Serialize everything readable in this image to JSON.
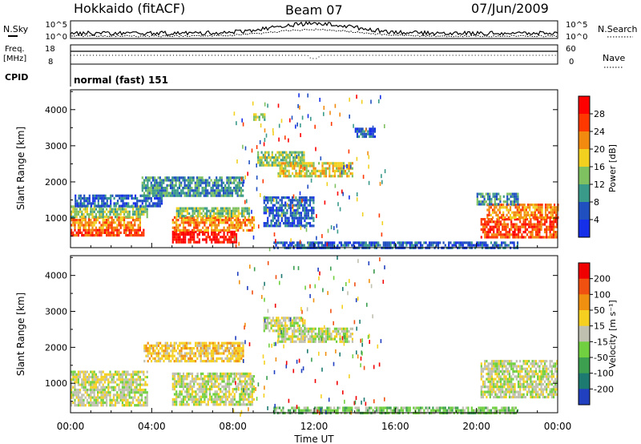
{
  "header": {
    "station": "Hokkaido (fitACF)",
    "beam": "Beam 07",
    "date": "07/Jun/2009"
  },
  "top_panels": {
    "nsky_label": "N.Sky",
    "nsearch_label": "N.Search",
    "noise_ticks_left": [
      "10^5",
      "10^0"
    ],
    "noise_ticks_right": [
      "10^5",
      "10^0"
    ],
    "freq_label_1": "Freq.",
    "freq_label_2": "[MHz]",
    "freq_ticks": [
      "18",
      "8"
    ],
    "nave_label": "Nave",
    "nave_ticks": [
      "60",
      "0"
    ],
    "cpid_label": "CPID",
    "cpid_text": "normal (fast) 151"
  },
  "chart_data": [
    {
      "type": "heatmap",
      "name": "power",
      "ylabel": "Slant Range [km]",
      "ylim": [
        180,
        4550
      ],
      "yticks": [
        1000,
        2000,
        3000,
        4000
      ],
      "ytick_labels": [
        "1000",
        "2000",
        "3000",
        "4000"
      ],
      "xlim": [
        0,
        24
      ],
      "colorbar": {
        "label": "Power [dB]",
        "tick_labels": [
          "4",
          "8",
          "12",
          "16",
          "20",
          "24",
          "28"
        ],
        "colors": [
          "#1530e8",
          "#2050c0",
          "#3a9a8a",
          "#7fc060",
          "#f2d020",
          "#f28a10",
          "#ff3800",
          "#ff0000"
        ]
      },
      "regions": [
        {
          "t0": 0.0,
          "t1": 3.6,
          "r0": 500,
          "r1": 700,
          "level": 6
        },
        {
          "t0": 0.0,
          "t1": 3.4,
          "r0": 750,
          "r1": 1050,
          "level": 5
        },
        {
          "t0": 0.0,
          "t1": 3.8,
          "r0": 1050,
          "r1": 1350,
          "level": 3
        },
        {
          "t0": 0.2,
          "t1": 4.5,
          "r0": 1350,
          "r1": 1650,
          "level": 1
        },
        {
          "t0": 5.0,
          "t1": 8.2,
          "r0": 350,
          "r1": 650,
          "level": 7
        },
        {
          "t0": 5.0,
          "t1": 9.0,
          "r0": 650,
          "r1": 1050,
          "level": 5
        },
        {
          "t0": 5.2,
          "t1": 8.8,
          "r0": 1050,
          "r1": 1300,
          "level": 3
        },
        {
          "t0": 3.5,
          "t1": 8.5,
          "r0": 1600,
          "r1": 2150,
          "level": 2
        },
        {
          "t0": 9.2,
          "t1": 11.5,
          "r0": 2450,
          "r1": 2850,
          "level": 3
        },
        {
          "t0": 10.2,
          "t1": 13.9,
          "r0": 2150,
          "r1": 2550,
          "level": 4
        },
        {
          "t0": 9.5,
          "t1": 12.0,
          "r0": 800,
          "r1": 1600,
          "level": 1
        },
        {
          "t0": 14.0,
          "t1": 15.0,
          "r0": 3250,
          "r1": 3500,
          "level": 1
        },
        {
          "t0": 9.0,
          "t1": 9.6,
          "r0": 3700,
          "r1": 3900,
          "level": 3
        },
        {
          "t0": 20.2,
          "t1": 24.0,
          "r0": 500,
          "r1": 1000,
          "level": 6
        },
        {
          "t0": 20.5,
          "t1": 24.0,
          "r0": 1000,
          "r1": 1400,
          "level": 5
        },
        {
          "t0": 20.0,
          "t1": 22.0,
          "r0": 1400,
          "r1": 1700,
          "level": 2
        },
        {
          "t0": 10.0,
          "t1": 22.0,
          "r0": 200,
          "r1": 350,
          "level": 1
        }
      ]
    },
    {
      "type": "heatmap",
      "name": "velocity",
      "ylabel": "Slant Range [km]",
      "xlabel": "Time UT",
      "ylim": [
        180,
        4550
      ],
      "yticks": [
        1000,
        2000,
        3000,
        4000
      ],
      "ytick_labels": [
        "1000",
        "2000",
        "3000",
        "4000"
      ],
      "xlim": [
        0,
        24
      ],
      "xticks": [
        0,
        4,
        8,
        12,
        16,
        20,
        24
      ],
      "xtick_labels": [
        "00:00",
        "04:00",
        "08:00",
        "12:00",
        "16:00",
        "20:00",
        "00:00"
      ],
      "colorbar": {
        "label": "Velocity [m s⁻¹]",
        "tick_labels": [
          "200",
          "100",
          "50",
          "15",
          "-15",
          "-50",
          "-100",
          "-200"
        ],
        "colors": [
          "#2040c0",
          "#1c7a70",
          "#3ca050",
          "#70d040",
          "#c0c0b0",
          "#f5d020",
          "#f09010",
          "#f05010",
          "#f00000"
        ]
      },
      "regions": [
        {
          "t0": 0.0,
          "t1": 3.8,
          "r0": 400,
          "r1": 1350,
          "level": 4
        },
        {
          "t0": 5.0,
          "t1": 9.0,
          "r0": 400,
          "r1": 1300,
          "level": 4
        },
        {
          "t0": 9.5,
          "t1": 11.5,
          "r0": 2450,
          "r1": 2850,
          "level": 4
        },
        {
          "t0": 10.2,
          "t1": 13.9,
          "r0": 2150,
          "r1": 2550,
          "level": 4
        },
        {
          "t0": 20.2,
          "t1": 24.0,
          "r0": 600,
          "r1": 1650,
          "level": 4
        },
        {
          "t0": 3.6,
          "t1": 8.5,
          "r0": 1600,
          "r1": 2150,
          "level": 5
        },
        {
          "t0": 10.0,
          "t1": 22.0,
          "r0": 200,
          "r1": 350,
          "level": 3
        }
      ]
    }
  ]
}
